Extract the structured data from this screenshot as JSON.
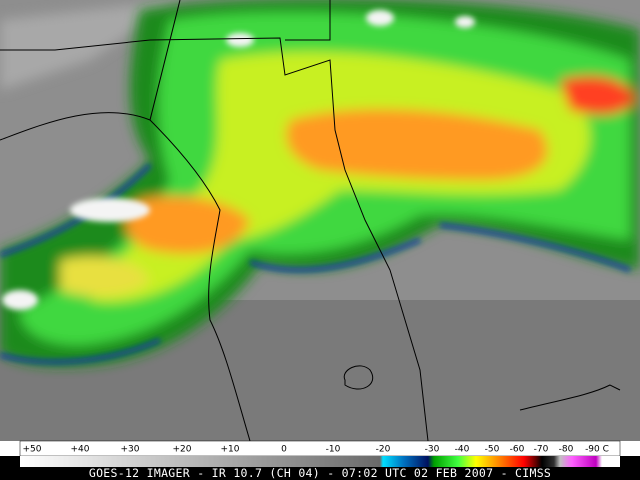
{
  "colorbar": {
    "labels": [
      "+50",
      "+40",
      "+30",
      "+20",
      "+10",
      "0",
      "-10",
      "-20",
      "-30",
      "-40",
      "-50",
      "-60",
      "-70",
      "-80",
      "-90 C"
    ]
  },
  "caption": "GOES-12 IMAGER - IR 10.7 (CH 04) - 07:02 UTC 02 FEB 2007 - CIMSS"
}
